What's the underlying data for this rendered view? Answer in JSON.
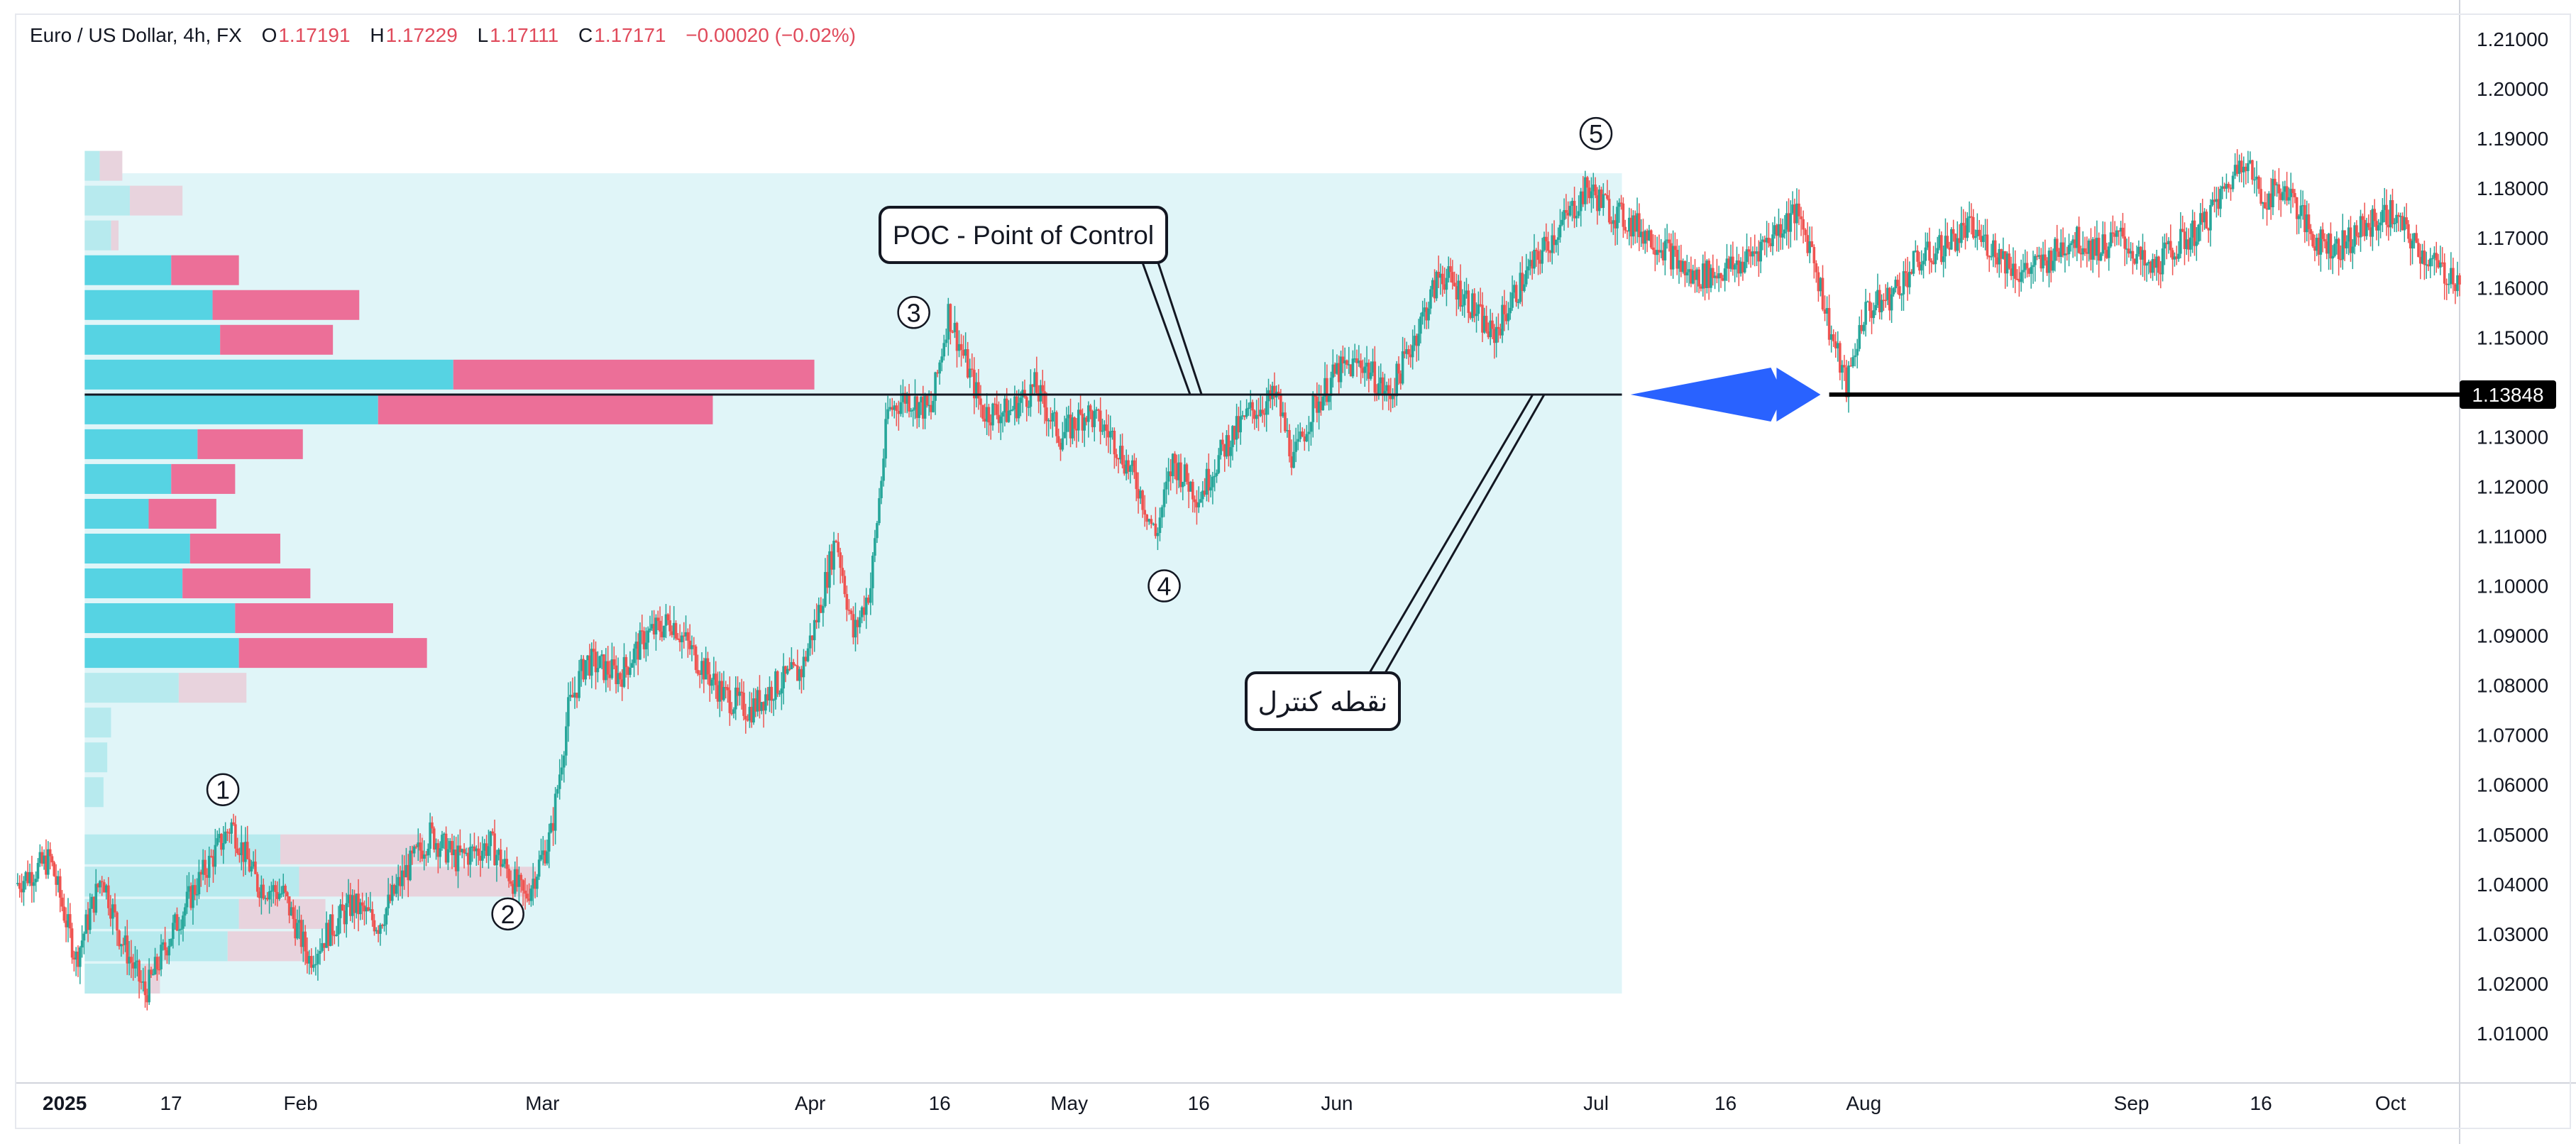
{
  "header": {
    "symbol": "Euro / US Dollar, 4h, FX",
    "o_label": "O",
    "o_value": "1.17191",
    "h_label": "H",
    "h_value": "1.17229",
    "l_label": "L",
    "l_value": "1.17111",
    "c_label": "C",
    "c_value": "1.17171",
    "change": "−0.00020 (−0.02%)"
  },
  "annotations": {
    "poc_label": "POC - Point of Control",
    "poc_persian": "نقطه کنترل",
    "markers": [
      "1",
      "2",
      "3",
      "4",
      "5"
    ],
    "price_label": "1.13848"
  },
  "colors": {
    "up_candle": "#26a69a",
    "down_candle": "#ef5350",
    "volume_up": "#56d3e3",
    "volume_down": "#ec6f98",
    "volume_up_faded": "#b7eaee",
    "volume_down_faded": "#e8d3dd",
    "range_fill": "#e0f5f8",
    "arrow": "#2962ff"
  },
  "chart_data": {
    "type": "candlestick",
    "y_axis": {
      "ticks": [
        "1.21000",
        "1.20000",
        "1.19000",
        "1.18000",
        "1.17000",
        "1.16000",
        "1.15000",
        "1.14000",
        "1.13000",
        "1.12000",
        "1.11000",
        "1.10000",
        "1.09000",
        "1.08000",
        "1.07000",
        "1.06000",
        "1.05000",
        "1.04000",
        "1.03000",
        "1.02000",
        "1.01000"
      ],
      "range": [
        1.0,
        1.215
      ]
    },
    "x_axis": {
      "ticks": [
        {
          "label": "2025",
          "bold": true,
          "day": 0
        },
        {
          "label": "17",
          "day": 16
        },
        {
          "label": "Feb",
          "day": 31
        },
        {
          "label": "Mar",
          "day": 59
        },
        {
          "label": "Apr",
          "day": 90
        },
        {
          "label": "16",
          "day": 105
        },
        {
          "label": "May",
          "day": 120
        },
        {
          "label": "16",
          "day": 135
        },
        {
          "label": "Jun",
          "day": 151
        },
        {
          "label": "Jul",
          "day": 181
        },
        {
          "label": "16",
          "day": 196
        },
        {
          "label": "Aug",
          "day": 212
        },
        {
          "label": "Sep",
          "day": 243
        },
        {
          "label": "16",
          "day": 258
        },
        {
          "label": "Oct",
          "day": 273
        }
      ],
      "range_days": [
        -2,
        281
      ]
    },
    "price_path": [
      {
        "day": -2,
        "price": 1.04
      },
      {
        "day": 2,
        "price": 1.045
      },
      {
        "day": 5,
        "price": 1.025
      },
      {
        "day": 8,
        "price": 1.042
      },
      {
        "day": 10,
        "price": 1.03
      },
      {
        "day": 13,
        "price": 1.018
      },
      {
        "day": 16,
        "price": 1.03
      },
      {
        "day": 19,
        "price": 1.04
      },
      {
        "day": 23,
        "price": 1.052
      },
      {
        "day": 26,
        "price": 1.04
      },
      {
        "day": 29,
        "price": 1.038
      },
      {
        "day": 32,
        "price": 1.025
      },
      {
        "day": 34,
        "price": 1.03
      },
      {
        "day": 37,
        "price": 1.036
      },
      {
        "day": 40,
        "price": 1.032
      },
      {
        "day": 43,
        "price": 1.042
      },
      {
        "day": 46,
        "price": 1.05
      },
      {
        "day": 49,
        "price": 1.045
      },
      {
        "day": 53,
        "price": 1.048
      },
      {
        "day": 57,
        "price": 1.037
      },
      {
        "day": 60,
        "price": 1.05
      },
      {
        "day": 62,
        "price": 1.075
      },
      {
        "day": 64,
        "price": 1.085
      },
      {
        "day": 68,
        "price": 1.082
      },
      {
        "day": 71,
        "price": 1.09
      },
      {
        "day": 74,
        "price": 1.093
      },
      {
        "day": 77,
        "price": 1.085
      },
      {
        "day": 80,
        "price": 1.078
      },
      {
        "day": 83,
        "price": 1.075
      },
      {
        "day": 86,
        "price": 1.08
      },
      {
        "day": 89,
        "price": 1.083
      },
      {
        "day": 91,
        "price": 1.095
      },
      {
        "day": 93,
        "price": 1.11
      },
      {
        "day": 95,
        "price": 1.09
      },
      {
        "day": 97,
        "price": 1.1
      },
      {
        "day": 99,
        "price": 1.135
      },
      {
        "day": 101,
        "price": 1.138
      },
      {
        "day": 104,
        "price": 1.135
      },
      {
        "day": 106,
        "price": 1.155
      },
      {
        "day": 108,
        "price": 1.145
      },
      {
        "day": 110,
        "price": 1.135
      },
      {
        "day": 113,
        "price": 1.135
      },
      {
        "day": 116,
        "price": 1.14
      },
      {
        "day": 119,
        "price": 1.13
      },
      {
        "day": 122,
        "price": 1.135
      },
      {
        "day": 125,
        "price": 1.13
      },
      {
        "day": 128,
        "price": 1.12
      },
      {
        "day": 130,
        "price": 1.11
      },
      {
        "day": 132,
        "price": 1.125
      },
      {
        "day": 135,
        "price": 1.118
      },
      {
        "day": 138,
        "price": 1.128
      },
      {
        "day": 141,
        "price": 1.135
      },
      {
        "day": 144,
        "price": 1.138
      },
      {
        "day": 146,
        "price": 1.125
      },
      {
        "day": 148,
        "price": 1.135
      },
      {
        "day": 151,
        "price": 1.143
      },
      {
        "day": 154,
        "price": 1.145
      },
      {
        "day": 157,
        "price": 1.138
      },
      {
        "day": 160,
        "price": 1.15
      },
      {
        "day": 163,
        "price": 1.163
      },
      {
        "day": 166,
        "price": 1.158
      },
      {
        "day": 169,
        "price": 1.15
      },
      {
        "day": 172,
        "price": 1.16
      },
      {
        "day": 175,
        "price": 1.168
      },
      {
        "day": 178,
        "price": 1.175
      },
      {
        "day": 180,
        "price": 1.18
      },
      {
        "day": 183,
        "price": 1.175
      },
      {
        "day": 186,
        "price": 1.172
      },
      {
        "day": 189,
        "price": 1.168
      },
      {
        "day": 192,
        "price": 1.162
      },
      {
        "day": 195,
        "price": 1.163
      },
      {
        "day": 198,
        "price": 1.165
      },
      {
        "day": 201,
        "price": 1.17
      },
      {
        "day": 204,
        "price": 1.175
      },
      {
        "day": 206,
        "price": 1.168
      },
      {
        "day": 208,
        "price": 1.152
      },
      {
        "day": 210,
        "price": 1.14
      },
      {
        "day": 212,
        "price": 1.155
      },
      {
        "day": 215,
        "price": 1.158
      },
      {
        "day": 218,
        "price": 1.165
      },
      {
        "day": 221,
        "price": 1.168
      },
      {
        "day": 224,
        "price": 1.172
      },
      {
        "day": 227,
        "price": 1.168
      },
      {
        "day": 230,
        "price": 1.163
      },
      {
        "day": 233,
        "price": 1.165
      },
      {
        "day": 236,
        "price": 1.17
      },
      {
        "day": 239,
        "price": 1.168
      },
      {
        "day": 242,
        "price": 1.17
      },
      {
        "day": 245,
        "price": 1.163
      },
      {
        "day": 248,
        "price": 1.168
      },
      {
        "day": 251,
        "price": 1.172
      },
      {
        "day": 254,
        "price": 1.18
      },
      {
        "day": 256,
        "price": 1.187
      },
      {
        "day": 258,
        "price": 1.178
      },
      {
        "day": 261,
        "price": 1.18
      },
      {
        "day": 264,
        "price": 1.17
      },
      {
        "day": 267,
        "price": 1.168
      },
      {
        "day": 270,
        "price": 1.172
      },
      {
        "day": 273,
        "price": 1.175
      },
      {
        "day": 276,
        "price": 1.168
      },
      {
        "day": 279,
        "price": 1.163
      },
      {
        "day": 281,
        "price": 1.162
      }
    ],
    "volume_profile": {
      "day_start": 6,
      "day_end": 184,
      "price_top": 1.183,
      "price_bottom": 1.018,
      "poc": 1.14,
      "bars": [
        {
          "low": 1.018,
          "high": 1.024,
          "up": 0.016,
          "down": 0.004,
          "faded": true
        },
        {
          "low": 1.0245,
          "high": 1.0305,
          "up": 0.038,
          "down": 0.021,
          "faded": true
        },
        {
          "low": 1.031,
          "high": 1.037,
          "up": 0.041,
          "down": 0.023,
          "faded": true
        },
        {
          "low": 1.0375,
          "high": 1.0435,
          "up": 0.057,
          "down": 0.063,
          "faded": true
        },
        {
          "low": 1.044,
          "high": 1.05,
          "up": 0.052,
          "down": 0.038,
          "faded": true
        },
        {
          "low": 1.0555,
          "high": 1.0615,
          "up": 0.005,
          "down": 0.0,
          "faded": true
        },
        {
          "low": 1.0625,
          "high": 1.0685,
          "up": 0.006,
          "down": 0.0,
          "faded": true
        },
        {
          "low": 1.0695,
          "high": 1.0755,
          "up": 0.007,
          "down": 0.0,
          "faded": true
        },
        {
          "low": 1.0765,
          "high": 1.0825,
          "up": 0.025,
          "down": 0.018,
          "faded": true
        },
        {
          "low": 1.0835,
          "high": 1.0895,
          "up": 0.041,
          "down": 0.05,
          "faded": false
        },
        {
          "low": 1.0905,
          "high": 1.0965,
          "up": 0.04,
          "down": 0.042,
          "faded": false
        },
        {
          "low": 1.0975,
          "high": 1.1035,
          "up": 0.026,
          "down": 0.034,
          "faded": false
        },
        {
          "low": 1.1045,
          "high": 1.1105,
          "up": 0.028,
          "down": 0.024,
          "faded": false
        },
        {
          "low": 1.1115,
          "high": 1.1175,
          "up": 0.017,
          "down": 0.018,
          "faded": false
        },
        {
          "low": 1.1185,
          "high": 1.1245,
          "up": 0.023,
          "down": 0.017,
          "faded": false
        },
        {
          "low": 1.1255,
          "high": 1.1315,
          "up": 0.03,
          "down": 0.028,
          "faded": false
        },
        {
          "low": 1.1325,
          "high": 1.1385,
          "up": 0.078,
          "down": 0.089,
          "faded": false
        },
        {
          "low": 1.1395,
          "high": 1.1455,
          "up": 0.098,
          "down": 0.096,
          "faded": false
        },
        {
          "low": 1.1465,
          "high": 1.1525,
          "up": 0.036,
          "down": 0.03,
          "faded": false
        },
        {
          "low": 1.1535,
          "high": 1.1595,
          "up": 0.034,
          "down": 0.039,
          "faded": false
        },
        {
          "low": 1.1605,
          "high": 1.1665,
          "up": 0.023,
          "down": 0.018,
          "faded": false
        },
        {
          "low": 1.1675,
          "high": 1.1735,
          "up": 0.007,
          "down": 0.002,
          "faded": true
        },
        {
          "low": 1.1745,
          "high": 1.1805,
          "up": 0.012,
          "down": 0.014,
          "faded": true
        },
        {
          "low": 1.1815,
          "high": 1.1875,
          "up": 0.004,
          "down": 0.006,
          "faded": true
        }
      ]
    },
    "poc_level": 1.13848,
    "markers": [
      {
        "label": "1",
        "day": 22,
        "price": 1.059
      },
      {
        "label": "2",
        "day": 55,
        "price": 1.034
      },
      {
        "label": "3",
        "day": 102,
        "price": 1.155
      },
      {
        "label": "4",
        "day": 131,
        "price": 1.1
      },
      {
        "label": "5",
        "day": 181,
        "price": 1.191
      }
    ]
  }
}
